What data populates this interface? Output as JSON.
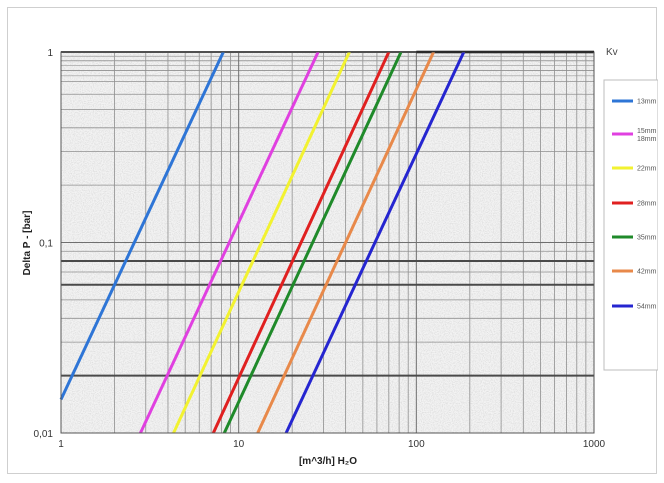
{
  "chart_data": {
    "type": "line",
    "title": "",
    "xlabel": "[m^3/h] H₂O",
    "ylabel": "Delta P - [bar]",
    "legend_title": "Kv",
    "x_scale": "log",
    "y_scale": "log",
    "xlim": [
      1,
      1000
    ],
    "ylim": [
      0.01,
      1
    ],
    "x_ticks": [
      1,
      10,
      100,
      1000
    ],
    "x_tick_labels": [
      "1",
      "10",
      "100",
      "1000"
    ],
    "y_ticks": [
      0.01,
      0.1,
      1
    ],
    "y_tick_labels": [
      "0,01",
      "0,1",
      "1"
    ],
    "grid": true,
    "highlight_gridlines_y": [
      0.02,
      0.06,
      0.08,
      1
    ],
    "legend_position": "right",
    "series": [
      {
        "name": "13mm",
        "color": "#2e75d6",
        "points": [
          [
            1.0,
            0.015
          ],
          [
            8.2,
            1.0
          ]
        ]
      },
      {
        "name": "15mm 18mm",
        "color": "#e040e0",
        "points": [
          [
            2.8,
            0.01
          ],
          [
            28,
            1.0
          ]
        ]
      },
      {
        "name": "22mm",
        "color": "#f2f230",
        "points": [
          [
            4.3,
            0.01
          ],
          [
            42,
            1.0
          ]
        ]
      },
      {
        "name": "28mm",
        "color": "#e02020",
        "points": [
          [
            7.2,
            0.01
          ],
          [
            70,
            1.0
          ]
        ]
      },
      {
        "name": "35mm",
        "color": "#1f8a2a",
        "points": [
          [
            8.3,
            0.01
          ],
          [
            82,
            1.0
          ]
        ]
      },
      {
        "name": "42mm",
        "color": "#e8894a",
        "points": [
          [
            12.8,
            0.01
          ],
          [
            125,
            1.0
          ]
        ]
      },
      {
        "name": "54mm",
        "color": "#2525d0",
        "points": [
          [
            18.5,
            0.01
          ],
          [
            185,
            1.0
          ]
        ]
      }
    ]
  }
}
